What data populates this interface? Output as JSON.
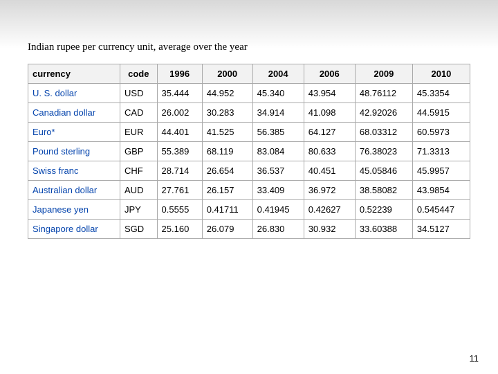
{
  "caption": "Indian rupee per currency unit, average over the year",
  "page_number": "11",
  "table": {
    "headers": [
      "currency",
      "code",
      "1996",
      "2000",
      "2004",
      "2006",
      "2009",
      "2010"
    ],
    "rows": [
      [
        "U. S. dollar",
        "USD",
        "35.444",
        "44.952",
        "45.340",
        "43.954",
        "48.76112",
        "45.3354"
      ],
      [
        "Canadian dollar",
        "CAD",
        "26.002",
        "30.283",
        "34.914",
        "41.098",
        "42.92026",
        "44.5915"
      ],
      [
        "Euro*",
        "EUR",
        "44.401",
        "41.525",
        "56.385",
        "64.127",
        "68.03312",
        "60.5973"
      ],
      [
        "Pound sterling",
        "GBP",
        "55.389",
        "68.119",
        "83.084",
        "80.633",
        "76.38023",
        "71.3313"
      ],
      [
        "Swiss franc",
        "CHF",
        "28.714",
        "26.654",
        "36.537",
        "40.451",
        "45.05846",
        "45.9957"
      ],
      [
        "Australian dollar",
        "AUD",
        "27.761",
        "26.157",
        "33.409",
        "36.972",
        "38.58082",
        "43.9854"
      ],
      [
        "Japanese yen",
        "JPY",
        "0.5555",
        "0.41711",
        "0.41945",
        "0.42627",
        "0.52239",
        "0.545447"
      ],
      [
        "Singapore dollar",
        "SGD",
        "25.160",
        "26.079",
        "26.830",
        "30.932",
        "33.60388",
        "34.5127"
      ]
    ],
    "link_color": "#0645ad",
    "header_bg": "#f2f2f2",
    "border_color": "#aaaaaa"
  }
}
